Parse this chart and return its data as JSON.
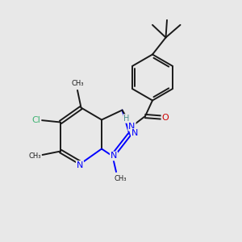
{
  "background_color": "#e8e8e8",
  "bond_color": "#1a1a1a",
  "nitrogen_color": "#0000ff",
  "oxygen_color": "#cc0000",
  "chlorine_color": "#3cb371",
  "hydrogen_color": "#4a9090",
  "figsize": [
    3.0,
    3.0
  ],
  "dpi": 100,
  "xlim": [
    0,
    10
  ],
  "ylim": [
    0,
    10
  ]
}
